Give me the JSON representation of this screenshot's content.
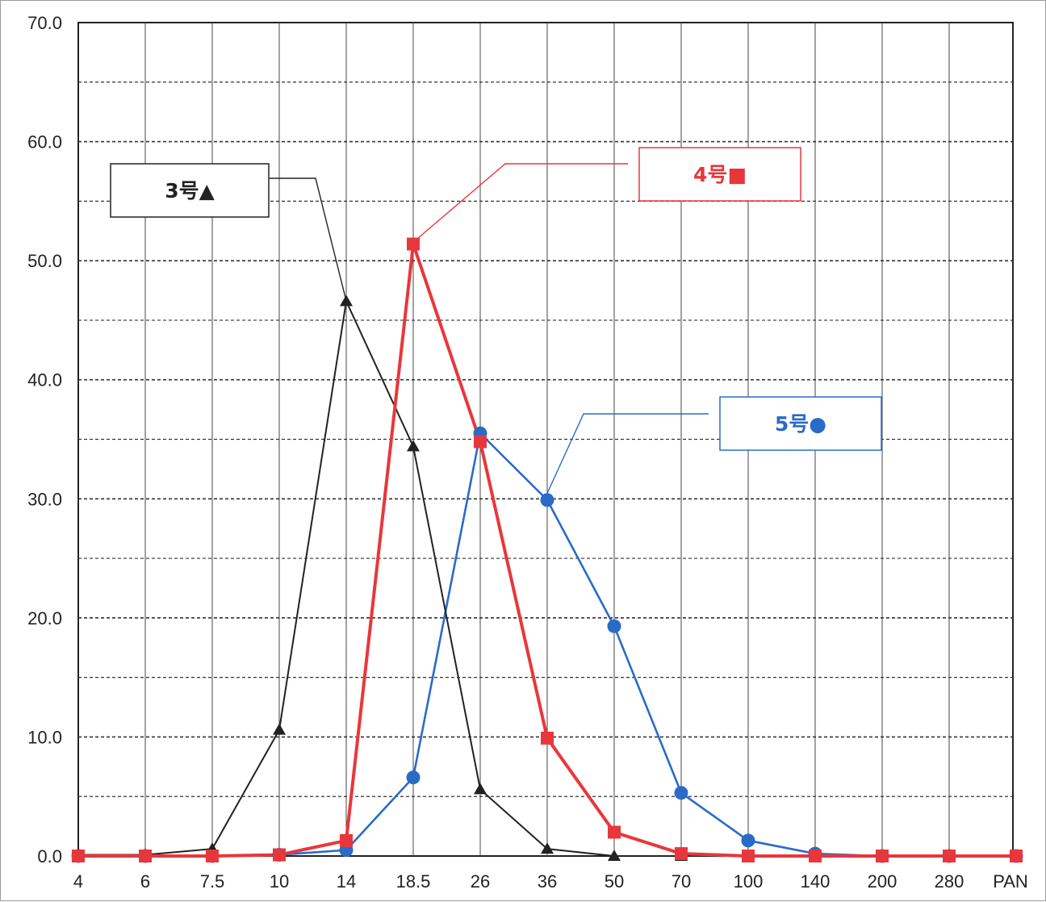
{
  "chart_data": {
    "type": "line",
    "categories": [
      "4",
      "6",
      "7.5",
      "10",
      "14",
      "18.5",
      "26",
      "36",
      "50",
      "70",
      "100",
      "140",
      "200",
      "280",
      "PAN"
    ],
    "ylim": [
      0,
      70
    ],
    "yticks": [
      "0.0",
      "10.0",
      "20.0",
      "30.0",
      "40.0",
      "50.0",
      "60.0",
      "70.0"
    ],
    "grid": true,
    "series": [
      {
        "name": "3号▲",
        "color": "#222222",
        "marker": "triangle",
        "values": [
          0.1,
          0.1,
          0.6,
          10.6,
          46.6,
          34.4,
          5.6,
          0.6,
          0.0,
          0.0,
          0.0,
          0.0,
          0.0,
          0.0,
          0.0
        ]
      },
      {
        "name": "4号■",
        "color": "#e8373c",
        "marker": "square",
        "values": [
          0.0,
          0.0,
          0.0,
          0.1,
          1.3,
          51.4,
          34.8,
          9.9,
          2.0,
          0.2,
          0.0,
          0.0,
          0.0,
          0.0,
          0.0
        ]
      },
      {
        "name": "5号●",
        "color": "#2a6bc8",
        "marker": "circle",
        "values": [
          0.0,
          0.0,
          0.0,
          0.1,
          0.5,
          6.6,
          35.5,
          29.9,
          19.3,
          5.3,
          1.3,
          0.2,
          0.0,
          0.0,
          0.0
        ]
      }
    ]
  }
}
